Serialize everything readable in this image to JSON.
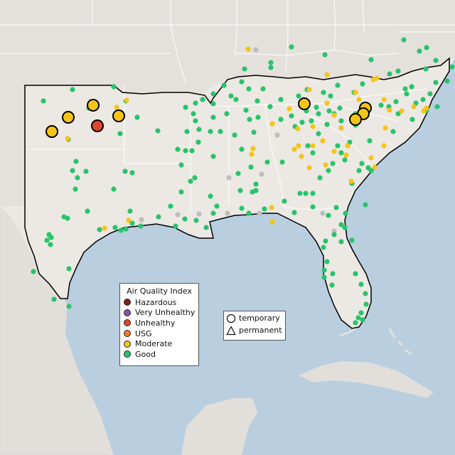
{
  "colors": {
    "land": "#ece8e3",
    "land_outside": "#e2dfdb",
    "water": "#b9cfe0",
    "state_border": "#ffffff",
    "region_outline": "#000000",
    "no_data": "#bdbdbd"
  },
  "legend": {
    "title": "Air Quality Index",
    "items": [
      {
        "label": "Hazardous",
        "color": "#7e2218"
      },
      {
        "label": "Very Unhealthy",
        "color": "#8b4fb3"
      },
      {
        "label": "Unhealthy",
        "color": "#e2452f"
      },
      {
        "label": "USG",
        "color": "#ef7f1a"
      },
      {
        "label": "Moderate",
        "color": "#f4c419"
      },
      {
        "label": "Good",
        "color": "#27c46b"
      }
    ]
  },
  "site_legend": {
    "temporary_label": "temporary",
    "permanent_label": "permanent"
  },
  "monitors": {
    "large": [
      {
        "aqi": "Moderate"
      },
      {
        "aqi": "Moderate"
      },
      {
        "aqi": "Moderate"
      },
      {
        "aqi": "Moderate"
      },
      {
        "aqi": "Unhealthy"
      },
      {
        "aqi": "Moderate"
      },
      {
        "aqi": "Moderate"
      },
      {
        "aqi": "Moderate"
      },
      {
        "aqi": "Moderate"
      }
    ],
    "small_good_count": 190,
    "small_moderate_count": 45,
    "small_nodata_count": 11
  }
}
